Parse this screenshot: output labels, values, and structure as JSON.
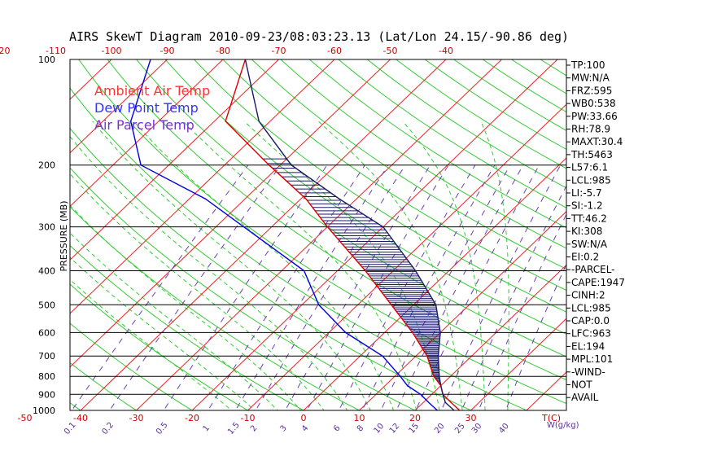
{
  "chart_data": {
    "type": "skewt",
    "title": "AIRS SkewT Diagram 2010-09-23/08:03:23.13 (Lat/Lon 24.15/-90.86 deg)",
    "ylabel": "PRESSURE (MB)",
    "xlabel_unit": "T(C)",
    "mixing_unit": "W(g/kg)",
    "pressure_ticks": [
      100,
      200,
      300,
      400,
      500,
      600,
      700,
      800,
      900,
      1000
    ],
    "bottom_temp_ticks": [
      -50,
      -40,
      -30,
      -20,
      -10,
      0,
      10,
      20,
      30
    ],
    "top_temp_ticks": [
      -120,
      -110,
      -100,
      -90,
      -80,
      -70,
      -60,
      -50,
      -40
    ],
    "mixing_ratio_labels": [
      0.1,
      0.2,
      0.5,
      1,
      1.5,
      2,
      3,
      4,
      6,
      8,
      10,
      12,
      15,
      20,
      25,
      30,
      40
    ],
    "legend": [
      {
        "label": "Ambient Air Temp",
        "color": "#ff3333"
      },
      {
        "label": "Dew Point Temp",
        "color": "#3333ff"
      },
      {
        "label": "Air Parcel Temp",
        "color": "#7b2fd6"
      }
    ],
    "series": [
      {
        "name": "Ambient Air Temp",
        "color": "#dd0000",
        "points": [
          [
            1000,
            28
          ],
          [
            950,
            25
          ],
          [
            900,
            22
          ],
          [
            850,
            20
          ],
          [
            800,
            17
          ],
          [
            700,
            12
          ],
          [
            600,
            5
          ],
          [
            500,
            -4
          ],
          [
            400,
            -15
          ],
          [
            300,
            -30
          ],
          [
            250,
            -39
          ],
          [
            200,
            -52
          ],
          [
            150,
            -68
          ],
          [
            100,
            -76
          ]
        ]
      },
      {
        "name": "Dew Point Temp",
        "color": "#0000dd",
        "points": [
          [
            1000,
            24
          ],
          [
            950,
            21
          ],
          [
            900,
            18
          ],
          [
            850,
            14
          ],
          [
            800,
            11
          ],
          [
            700,
            4
          ],
          [
            600,
            -7
          ],
          [
            500,
            -17
          ],
          [
            400,
            -26
          ],
          [
            300,
            -45
          ],
          [
            250,
            -57
          ],
          [
            200,
            -75
          ],
          [
            150,
            -85
          ],
          [
            100,
            -93
          ]
        ]
      },
      {
        "name": "Air Parcel Temp",
        "color": "#1a1a66",
        "points": [
          [
            1000,
            27
          ],
          [
            950,
            24
          ],
          [
            900,
            22
          ],
          [
            850,
            20
          ],
          [
            800,
            18
          ],
          [
            700,
            14
          ],
          [
            600,
            10
          ],
          [
            500,
            4
          ],
          [
            400,
            -6
          ],
          [
            300,
            -20
          ],
          [
            250,
            -33
          ],
          [
            200,
            -48
          ],
          [
            150,
            -62
          ],
          [
            100,
            -76
          ]
        ]
      }
    ],
    "indices": [
      "TP:100",
      "MW:N/A",
      "FRZ:595",
      "WB0:538",
      "PW:33.66",
      "RH:78.9",
      "MAXT:30.4",
      "TH:5463",
      "L57:6.1",
      "LCL:985",
      "LI:-5.7",
      "SI:-1.2",
      "TT:46.2",
      "KI:308",
      "SW:N/A",
      "EI:0.2",
      "-PARCEL-",
      "CAPE:1947",
      "CINH:2",
      "LCL:985",
      "CAP:0.0",
      "LFC:963",
      "EL:194",
      "MPL:101",
      "-WIND-",
      "NOT",
      "AVAIL"
    ]
  }
}
